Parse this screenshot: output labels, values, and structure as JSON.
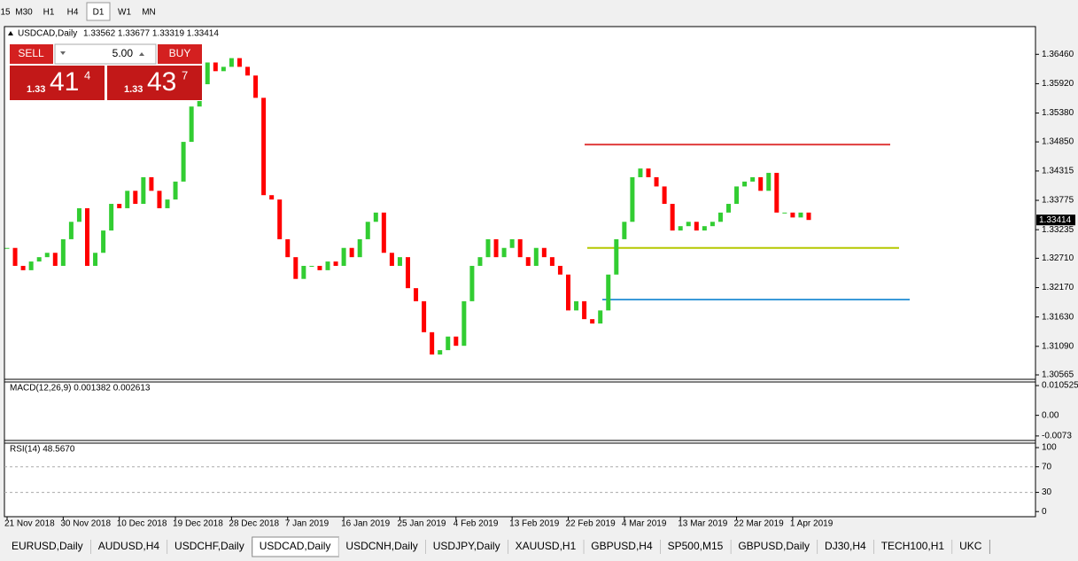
{
  "toolbar": {
    "timeframes": [
      "15",
      "M30",
      "H1",
      "H4",
      "D1",
      "W1",
      "MN"
    ]
  },
  "trade_panel": {
    "sell": "SELL",
    "buy": "BUY",
    "volume": "5.00",
    "bid": {
      "prefix": "1.33",
      "big": "41",
      "small": "4"
    },
    "ask": {
      "prefix": "1.33",
      "big": "43",
      "small": "7"
    }
  },
  "chart_data": {
    "type": "candlestick",
    "title": "USDCAD,Daily",
    "ohlc_header": "1.33562 1.33677 1.33319 1.33414",
    "categories": [
      "21 Nov 2018",
      null,
      null,
      null,
      null,
      null,
      null,
      "30 Nov 2018",
      null,
      null,
      null,
      null,
      null,
      null,
      "10 Dec 2018",
      null,
      null,
      null,
      null,
      null,
      null,
      "19 Dec 2018",
      null,
      null,
      null,
      null,
      null,
      null,
      "28 Dec 2018",
      null,
      null,
      null,
      null,
      null,
      null,
      "7 Jan 2019",
      null,
      null,
      null,
      null,
      null,
      null,
      "16 Jan 2019",
      null,
      null,
      null,
      null,
      null,
      null,
      "25 Jan 2019",
      null,
      null,
      null,
      null,
      null,
      null,
      "4 Feb 2019",
      null,
      null,
      null,
      null,
      null,
      null,
      "13 Feb 2019",
      null,
      null,
      null,
      null,
      null,
      null,
      "22 Feb 2019",
      null,
      null,
      null,
      null,
      null,
      null,
      "4 Mar 2019",
      null,
      null,
      null,
      null,
      null,
      null,
      "13 Mar 2019",
      null,
      null,
      null,
      null,
      null,
      null,
      "22 Mar 2019",
      null,
      null,
      null,
      null,
      null,
      null,
      "1 Apr 2019",
      null,
      null
    ],
    "close": [
      1.329,
      1.3257,
      1.3249,
      1.3265,
      1.3273,
      1.3281,
      1.3257,
      1.3306,
      1.3338,
      1.3363,
      1.3257,
      1.3281,
      1.3322,
      1.3371,
      1.3363,
      1.3395,
      1.3371,
      1.342,
      1.3395,
      1.3363,
      1.3379,
      1.3412,
      1.3485,
      1.355,
      1.3591,
      1.3631,
      1.3615,
      1.3623,
      1.3639,
      1.3623,
      1.3607,
      1.3566,
      1.3387,
      1.3379,
      1.3306,
      1.3273,
      1.3233,
      1.3257,
      1.3257,
      1.3249,
      1.3265,
      1.3257,
      1.329,
      1.3273,
      1.3306,
      1.3338,
      1.3355,
      1.3281,
      1.3257,
      1.3273,
      1.3216,
      1.3192,
      1.3135,
      1.3094,
      1.3102,
      1.3127,
      1.311,
      1.3192,
      1.3257,
      1.3273,
      1.3306,
      1.3273,
      1.329,
      1.3306,
      1.3273,
      1.3257,
      1.329,
      1.3273,
      1.3257,
      1.3241,
      1.3175,
      1.3192,
      1.3159,
      1.3151,
      1.3175,
      1.3241,
      1.3306,
      1.3338,
      1.342,
      1.3436,
      1.342,
      1.3403,
      1.3371,
      1.3322,
      1.333,
      1.3338,
      1.3322,
      1.333,
      1.3338,
      1.3355,
      1.3371,
      1.3403,
      1.3412,
      1.342,
      1.3395,
      1.3428,
      1.3355,
      1.3355,
      1.3346,
      1.3355,
      1.33414
    ],
    "colors": {
      "up": "#32cd32",
      "down": "#ff0000"
    },
    "ylim": [
      1.305,
      1.3697
    ],
    "yticks": [
      {
        "value": 1.3646,
        "label": "1.36460"
      },
      {
        "value": 1.3592,
        "label": "1.35920"
      },
      {
        "value": 1.3538,
        "label": "1.35380"
      },
      {
        "value": 1.3485,
        "label": "1.34850"
      },
      1.34315,
      1.33775,
      1.33235,
      {
        "value": 1.3271,
        "label": "1.32710"
      },
      {
        "value": 1.3217,
        "label": "1.32170"
      },
      {
        "value": 1.3163,
        "label": "1.31630"
      },
      {
        "value": 1.3109,
        "label": "1.31090"
      },
      1.30565
    ],
    "current_price": 1.33414,
    "levels": [
      {
        "value": 1.348,
        "color": "#e03c3c"
      },
      {
        "value": 1.329,
        "color": "#b5c800"
      },
      {
        "value": 1.3195,
        "color": "#3a9ad9"
      }
    ],
    "indicators": [
      {
        "title": "MACD(12,26,9) 0.001382 0.002613",
        "ylim": [
          -0.0089,
          0.0118
        ],
        "yticks": [
          0.010525,
          {
            "value": 0,
            "label": "0.00"
          },
          -0.0073
        ]
      },
      {
        "title": "RSI(14) 48.5670",
        "ylim": [
          -8,
          107
        ],
        "yticks": [
          100,
          70,
          30,
          0
        ]
      }
    ]
  },
  "tabs": [
    "EURUSD,Daily",
    "AUDUSD,H4",
    "USDCHF,Daily",
    "USDCAD,Daily",
    "USDCNH,Daily",
    "USDJPY,Daily",
    "XAUUSD,H1",
    "GBPUSD,H4",
    "SP500,M15",
    "GBPUSD,Daily",
    "DJ30,H4",
    "TECH100,H1",
    "UKC"
  ]
}
